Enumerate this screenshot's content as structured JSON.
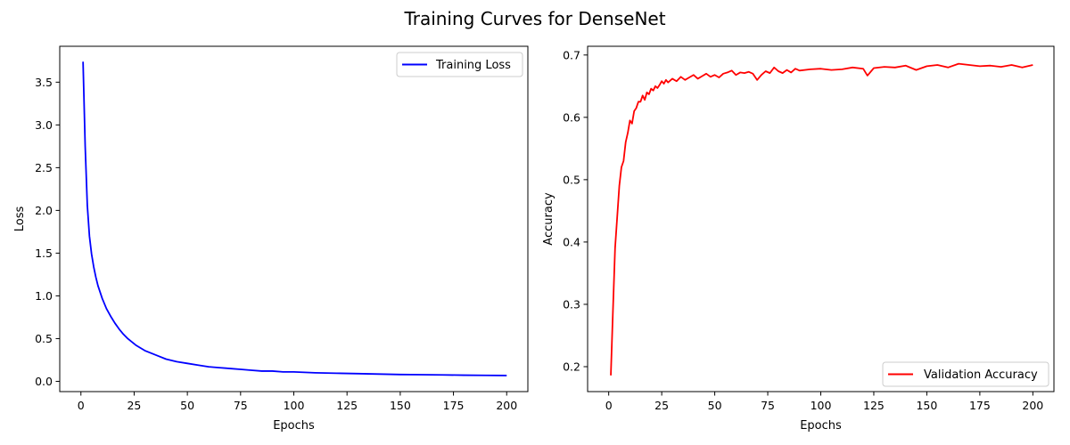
{
  "figure": {
    "suptitle": "Training Curves for DenseNet"
  },
  "chart_data": [
    {
      "type": "line",
      "xlabel": "Epochs",
      "ylabel": "Loss",
      "xlim": [
        -9.95,
        209.95
      ],
      "ylim": [
        -0.12,
        3.92
      ],
      "xticks": [
        0,
        25,
        50,
        75,
        100,
        125,
        150,
        175,
        200
      ],
      "xtick_labels": [
        "0",
        "25",
        "50",
        "75",
        "100",
        "125",
        "150",
        "175",
        "200"
      ],
      "yticks": [
        0.0,
        0.5,
        1.0,
        1.5,
        2.0,
        2.5,
        3.0,
        3.5
      ],
      "ytick_labels": [
        "0.0",
        "0.5",
        "1.0",
        "1.5",
        "2.0",
        "2.5",
        "3.0",
        "3.5"
      ],
      "grid": false,
      "legend_position": "upper right",
      "series": [
        {
          "name": "Training Loss",
          "color": "#0000ff",
          "x": [
            1,
            2,
            3,
            4,
            5,
            6,
            7,
            8,
            10,
            12,
            14,
            16,
            18,
            20,
            22,
            24,
            26,
            28,
            30,
            33,
            36,
            40,
            45,
            50,
            55,
            60,
            65,
            70,
            75,
            80,
            85,
            90,
            95,
            100,
            110,
            120,
            130,
            140,
            150,
            160,
            170,
            180,
            190,
            200
          ],
          "y": [
            3.74,
            2.75,
            2.06,
            1.7,
            1.49,
            1.34,
            1.22,
            1.12,
            0.97,
            0.85,
            0.76,
            0.68,
            0.61,
            0.55,
            0.5,
            0.46,
            0.42,
            0.39,
            0.36,
            0.33,
            0.3,
            0.26,
            0.23,
            0.21,
            0.19,
            0.17,
            0.16,
            0.15,
            0.14,
            0.13,
            0.12,
            0.12,
            0.11,
            0.11,
            0.1,
            0.095,
            0.09,
            0.085,
            0.08,
            0.078,
            0.075,
            0.072,
            0.07,
            0.068
          ]
        }
      ]
    },
    {
      "type": "line",
      "xlabel": "Epochs",
      "ylabel": "Accuracy",
      "xlim": [
        -9.95,
        209.95
      ],
      "ylim": [
        0.16,
        0.714
      ],
      "xticks": [
        0,
        25,
        50,
        75,
        100,
        125,
        150,
        175,
        200
      ],
      "xtick_labels": [
        "0",
        "25",
        "50",
        "75",
        "100",
        "125",
        "150",
        "175",
        "200"
      ],
      "yticks": [
        0.2,
        0.3,
        0.4,
        0.5,
        0.6,
        0.7
      ],
      "ytick_labels": [
        "0.2",
        "0.3",
        "0.4",
        "0.5",
        "0.6",
        "0.7"
      ],
      "grid": false,
      "legend_position": "lower right",
      "series": [
        {
          "name": "Validation Accuracy",
          "color": "#ff0000",
          "x": [
            1,
            2,
            3,
            4,
            5,
            6,
            7,
            8,
            9,
            10,
            11,
            12,
            13,
            14,
            15,
            16,
            17,
            18,
            19,
            20,
            21,
            22,
            23,
            24,
            25,
            26,
            27,
            28,
            30,
            32,
            34,
            36,
            38,
            40,
            42,
            44,
            46,
            48,
            50,
            52,
            54,
            56,
            58,
            60,
            62,
            64,
            66,
            68,
            70,
            72,
            74,
            76,
            78,
            80,
            82,
            84,
            86,
            88,
            90,
            95,
            100,
            105,
            110,
            115,
            120,
            122,
            125,
            130,
            135,
            140,
            145,
            150,
            155,
            160,
            165,
            170,
            175,
            180,
            185,
            190,
            195,
            200
          ],
          "y": [
            0.186,
            0.29,
            0.39,
            0.44,
            0.49,
            0.52,
            0.53,
            0.56,
            0.575,
            0.595,
            0.59,
            0.61,
            0.615,
            0.625,
            0.625,
            0.635,
            0.628,
            0.64,
            0.637,
            0.646,
            0.643,
            0.65,
            0.647,
            0.652,
            0.658,
            0.654,
            0.66,
            0.656,
            0.662,
            0.658,
            0.665,
            0.66,
            0.664,
            0.668,
            0.662,
            0.666,
            0.67,
            0.665,
            0.668,
            0.664,
            0.67,
            0.672,
            0.675,
            0.668,
            0.672,
            0.671,
            0.673,
            0.67,
            0.66,
            0.668,
            0.674,
            0.671,
            0.68,
            0.674,
            0.671,
            0.676,
            0.672,
            0.678,
            0.675,
            0.677,
            0.678,
            0.676,
            0.677,
            0.68,
            0.678,
            0.667,
            0.679,
            0.681,
            0.68,
            0.683,
            0.676,
            0.682,
            0.684,
            0.68,
            0.686,
            0.684,
            0.682,
            0.683,
            0.681,
            0.684,
            0.68,
            0.684
          ]
        }
      ]
    }
  ]
}
